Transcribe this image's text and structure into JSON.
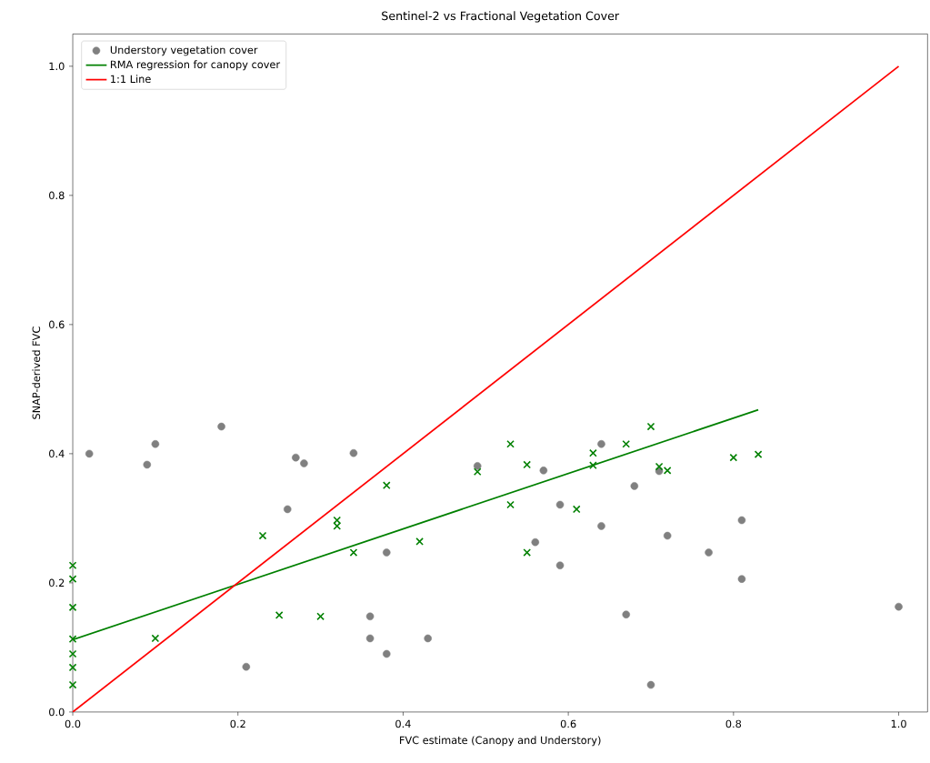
{
  "chart_data": {
    "type": "scatter",
    "title": "Sentinel-2 vs Fractional Vegetation Cover",
    "xlabel": "FVC estimate (Canopy and Understory)",
    "ylabel": "SNAP-derived FVC",
    "xlim": [
      0,
      1.035
    ],
    "ylim": [
      0,
      1.05
    ],
    "xticks": [
      {
        "value": 0,
        "label": "0.0"
      },
      {
        "value": 0.2,
        "label": "0.2"
      },
      {
        "value": 0.4,
        "label": "0.4"
      },
      {
        "value": 0.6,
        "label": "0.6"
      },
      {
        "value": 0.8,
        "label": "0.8"
      },
      {
        "value": 1.0,
        "label": "1.0"
      }
    ],
    "yticks": [
      {
        "value": 0,
        "label": "0.0"
      },
      {
        "value": 0.2,
        "label": "0.2"
      },
      {
        "value": 0.4,
        "label": "0.4"
      },
      {
        "value": 0.6,
        "label": "0.6"
      },
      {
        "value": 0.8,
        "label": "0.8"
      },
      {
        "value": 1.0,
        "label": "1.0"
      }
    ],
    "grid": false,
    "legend": "top left",
    "series": [
      {
        "name": "Understory vegetation cover",
        "color": "#808080",
        "marker": "circle",
        "x": [
          0.02,
          0.09,
          0.1,
          0.18,
          0.21,
          0.26,
          0.27,
          0.28,
          0.34,
          0.38,
          0.36,
          0.36,
          0.38,
          0.43,
          0.49,
          0.57,
          0.64,
          0.68,
          0.71,
          0.59,
          0.64,
          0.56,
          0.59,
          0.72,
          0.77,
          0.81,
          0.81,
          0.67,
          0.7,
          1.0
        ],
        "values": [
          0.4,
          0.383,
          0.415,
          0.442,
          0.07,
          0.314,
          0.394,
          0.385,
          0.401,
          0.247,
          0.148,
          0.114,
          0.09,
          0.114,
          0.381,
          0.374,
          0.415,
          0.35,
          0.373,
          0.321,
          0.288,
          0.263,
          0.227,
          0.273,
          0.247,
          0.297,
          0.206,
          0.151,
          0.042,
          0.163
        ]
      },
      {
        "color": "#008000",
        "marker": "cross",
        "x": [
          0.53,
          0.55,
          0.49,
          0.63,
          0.63,
          0.67,
          0.7,
          0.71,
          0.72,
          0.8,
          0.83,
          0.53,
          0.61,
          0.55,
          0.23,
          0.32,
          0.32,
          0.38,
          0.34,
          0.25,
          0.3,
          0.1,
          0.42,
          0,
          0,
          0,
          0,
          0,
          0,
          0
        ],
        "values": [
          0.415,
          0.383,
          0.372,
          0.401,
          0.382,
          0.415,
          0.442,
          0.38,
          0.374,
          0.394,
          0.399,
          0.321,
          0.314,
          0.247,
          0.273,
          0.297,
          0.288,
          0.351,
          0.247,
          0.15,
          0.148,
          0.114,
          0.264,
          0.227,
          0.206,
          0.162,
          0.113,
          0.09,
          0.069,
          0.042
        ]
      },
      {
        "type": "line",
        "name": "RMA regression for canopy cover",
        "color": "#008000",
        "x": [
          0,
          0.83
        ],
        "values": [
          0.112,
          0.468
        ]
      },
      {
        "type": "line",
        "name": "1:1 Line",
        "color": "#ff0000",
        "x": [
          0,
          1
        ],
        "values": [
          0,
          1
        ]
      }
    ]
  }
}
